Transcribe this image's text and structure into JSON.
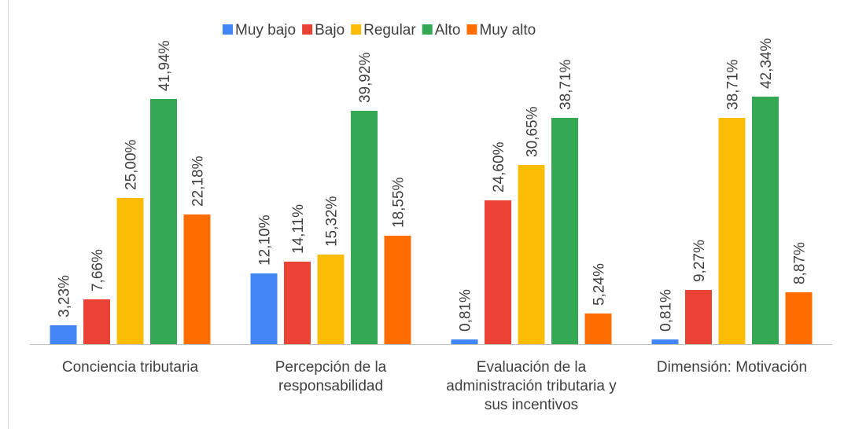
{
  "chart_data": {
    "type": "bar",
    "categories": [
      "Conciencia tributaria",
      "Percepción de la responsabilidad",
      "Evaluación de la administración tributaria y sus incentivos",
      "Dimensión: Motivación"
    ],
    "series": [
      {
        "name": "Muy bajo",
        "color": "#4285f4",
        "values": [
          3.23,
          12.1,
          0.81,
          0.81
        ],
        "value_labels": [
          "3,23%",
          "12,10%",
          "0,81%",
          "0,81%"
        ]
      },
      {
        "name": "Bajo",
        "color": "#ea4335",
        "values": [
          7.66,
          14.11,
          24.6,
          9.27
        ],
        "value_labels": [
          "7,66%",
          "14,11%",
          "24,60%",
          "9,27%"
        ]
      },
      {
        "name": "Regular",
        "color": "#fbbc04",
        "values": [
          25.0,
          15.32,
          30.65,
          38.71
        ],
        "value_labels": [
          "25,00%",
          "15,32%",
          "30,65%",
          "38,71%"
        ]
      },
      {
        "name": "Alto",
        "color": "#34a853",
        "values": [
          41.94,
          39.92,
          38.71,
          42.34
        ],
        "value_labels": [
          "41,94%",
          "39,92%",
          "38,71%",
          "42,34%"
        ]
      },
      {
        "name": "Muy alto",
        "color": "#ff6d01",
        "values": [
          22.18,
          18.55,
          5.24,
          8.87
        ],
        "value_labels": [
          "22,18%",
          "18,55%",
          "5,24%",
          "8,87%"
        ]
      }
    ],
    "legend": "top"
  }
}
